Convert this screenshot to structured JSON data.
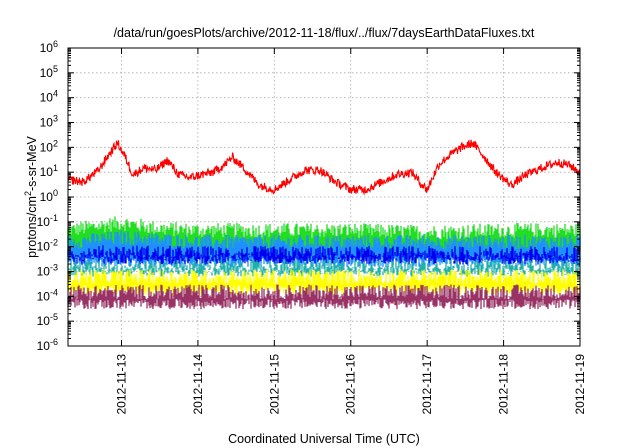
{
  "chart_data": {
    "type": "line",
    "title": "/data/run/goesPlots/archive/2012-11-18/flux/../flux/7daysEarthDataFluxes.txt",
    "xlabel": "Coordinated Universal Time (UTC)",
    "ylabel": {
      "before": "protons/cm",
      "sup": "2",
      "after": "-s-sr-MeV"
    },
    "x_unit": "days since 2012-11-12T00:00 UTC",
    "xlim": [
      1.0,
      7.0
    ],
    "x_ticks": [
      {
        "x": 1.0,
        "label": "2012-11-13"
      },
      {
        "x": 2.0,
        "label": "2012-11-14"
      },
      {
        "x": 3.0,
        "label": "2012-11-15"
      },
      {
        "x": 4.0,
        "label": "2012-11-16"
      },
      {
        "x": 5.0,
        "label": "2012-11-17"
      },
      {
        "x": 6.0,
        "label": "2012-11-18"
      },
      {
        "x": 7.0,
        "label": "2012-11-19"
      }
    ],
    "xlim_days": [
      0.3,
      7.0
    ],
    "y_scale": "log",
    "ylim": [
      1e-06,
      1000000.0
    ],
    "y_ticks": [
      {
        "exp": 6
      },
      {
        "exp": 5
      },
      {
        "exp": 4
      },
      {
        "exp": 3
      },
      {
        "exp": 2
      },
      {
        "exp": 1
      },
      {
        "exp": 0
      },
      {
        "exp": -1
      },
      {
        "exp": -2
      },
      {
        "exp": -3
      },
      {
        "exp": -4
      },
      {
        "exp": -5
      },
      {
        "exp": -6
      }
    ],
    "y_tick_base": "10",
    "grid": true,
    "series": [
      {
        "color": "#ff0000",
        "style": "line",
        "x": [
          0.3,
          0.5,
          0.7,
          0.85,
          0.95,
          1.05,
          1.15,
          1.3,
          1.45,
          1.6,
          1.75,
          1.9,
          2.05,
          2.2,
          2.35,
          2.45,
          2.6,
          2.8,
          3.0,
          3.2,
          3.4,
          3.6,
          3.8,
          4.0,
          4.2,
          4.4,
          4.6,
          4.8,
          4.9,
          5.0,
          5.15,
          5.3,
          5.45,
          5.6,
          5.75,
          5.9,
          6.1,
          6.3,
          6.5,
          6.7,
          6.85,
          7.0
        ],
        "y": [
          5,
          4,
          12,
          60,
          150,
          40,
          8,
          15,
          12,
          30,
          8,
          6,
          8,
          10,
          20,
          40,
          15,
          3,
          2,
          5,
          12,
          12,
          4,
          2,
          2,
          4,
          8,
          10,
          4,
          2,
          20,
          50,
          100,
          150,
          40,
          10,
          3,
          8,
          15,
          25,
          20,
          10
        ]
      },
      {
        "color": "#22dd22",
        "style": "band",
        "x": [
          0.3,
          1.0,
          1.5,
          2.0,
          3.0,
          4.0,
          5.0,
          6.0,
          7.0
        ],
        "y_low": [
          0.004,
          0.004,
          0.004,
          0.004,
          0.004,
          0.004,
          0.004,
          0.004,
          0.004
        ],
        "y_high": [
          0.06,
          0.12,
          0.07,
          0.06,
          0.06,
          0.06,
          0.05,
          0.06,
          0.06
        ]
      },
      {
        "color": "#1e90ff",
        "style": "band",
        "x": [
          0.3,
          1.0,
          2.0,
          3.0,
          4.0,
          5.0,
          6.0,
          7.0
        ],
        "y_low": [
          0.002,
          0.002,
          0.002,
          0.002,
          0.002,
          0.002,
          0.002,
          0.002
        ],
        "y_high": [
          0.02,
          0.03,
          0.02,
          0.02,
          0.02,
          0.02,
          0.02,
          0.02
        ]
      },
      {
        "color": "#0000ee",
        "style": "band",
        "x": [
          0.3,
          1.0,
          2.0,
          3.0,
          4.0,
          5.0,
          6.0,
          7.0
        ],
        "y_low": [
          0.0025,
          0.0025,
          0.0025,
          0.0025,
          0.0025,
          0.0025,
          0.0025,
          0.0025
        ],
        "y_high": [
          0.007,
          0.008,
          0.007,
          0.007,
          0.007,
          0.007,
          0.007,
          0.007
        ]
      },
      {
        "color": "#20b2aa",
        "style": "band",
        "x": [
          0.3,
          7.0
        ],
        "y_low": [
          0.0008,
          0.0008
        ],
        "y_high": [
          0.002,
          0.002
        ]
      },
      {
        "color": "#ffff00",
        "style": "band",
        "x": [
          0.3,
          7.0
        ],
        "y_low": [
          0.00015,
          0.00015
        ],
        "y_high": [
          0.0008,
          0.0008
        ]
      },
      {
        "color": "#993366",
        "style": "band",
        "x": [
          0.3,
          7.0
        ],
        "y_low": [
          4e-05,
          4e-05
        ],
        "y_high": [
          0.0002,
          0.0002
        ]
      }
    ]
  }
}
